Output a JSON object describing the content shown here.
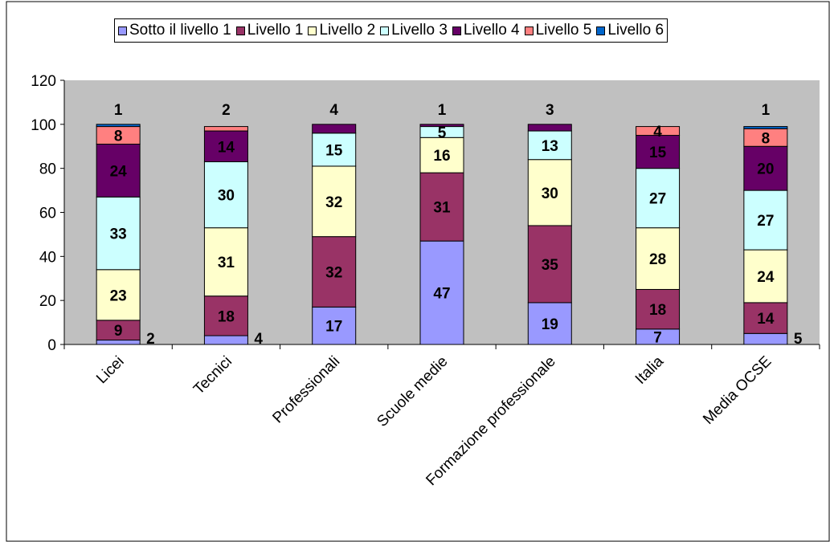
{
  "chart_data": {
    "type": "bar",
    "stacked": true,
    "title": "",
    "xlabel": "",
    "ylabel": "",
    "ylim": [
      0,
      120
    ],
    "yticks": [
      0,
      20,
      40,
      60,
      80,
      100,
      120
    ],
    "grid": false,
    "plot_background": "#C0C0C0",
    "legend_position": "top",
    "categories": [
      "Licei",
      "Tecnici",
      "Professionali",
      "Scuole medie",
      "Formazione professionale",
      "Italia",
      "Media OCSE"
    ],
    "series": [
      {
        "name": "Sotto il livello 1",
        "color": "#9999FF",
        "values": [
          2,
          4,
          17,
          47,
          19,
          7,
          5
        ]
      },
      {
        "name": "Livello 1",
        "color": "#993366",
        "values": [
          9,
          18,
          32,
          31,
          35,
          18,
          14
        ]
      },
      {
        "name": "Livello 2",
        "color": "#FFFFCC",
        "values": [
          23,
          31,
          32,
          16,
          30,
          28,
          24
        ]
      },
      {
        "name": "Livello 3",
        "color": "#CCFFFF",
        "values": [
          33,
          30,
          15,
          5,
          13,
          27,
          27
        ]
      },
      {
        "name": "Livello 4",
        "color": "#660066",
        "values": [
          24,
          14,
          4,
          1,
          3,
          15,
          20
        ]
      },
      {
        "name": "Livello 5",
        "color": "#FF8080",
        "values": [
          8,
          2,
          0,
          0,
          0,
          4,
          8
        ]
      },
      {
        "name": "Livello 6",
        "color": "#0066CC",
        "values": [
          1,
          0,
          0,
          0,
          0,
          0,
          1
        ]
      }
    ],
    "data_labels": [
      {
        "category": "Licei",
        "labels": [
          "2",
          "9",
          "23",
          "33",
          "24",
          "8",
          "1"
        ]
      },
      {
        "category": "Tecnici",
        "labels": [
          "4",
          "18",
          "31",
          "30",
          "14",
          "2",
          ""
        ]
      },
      {
        "category": "Professionali",
        "labels": [
          "17",
          "32",
          "32",
          "15",
          "4",
          "",
          ""
        ]
      },
      {
        "category": "Scuole medie",
        "labels": [
          "47",
          "31",
          "16",
          "5",
          "1",
          "",
          ""
        ]
      },
      {
        "category": "Formazione professionale",
        "labels": [
          "19",
          "35",
          "30",
          "13",
          "3",
          "",
          ""
        ]
      },
      {
        "category": "Italia",
        "labels": [
          "7",
          "18",
          "28",
          "27",
          "15",
          "4",
          ""
        ]
      },
      {
        "category": "Media OCSE",
        "labels": [
          "5",
          "14",
          "24",
          "27",
          "20",
          "8",
          "1"
        ]
      }
    ]
  }
}
